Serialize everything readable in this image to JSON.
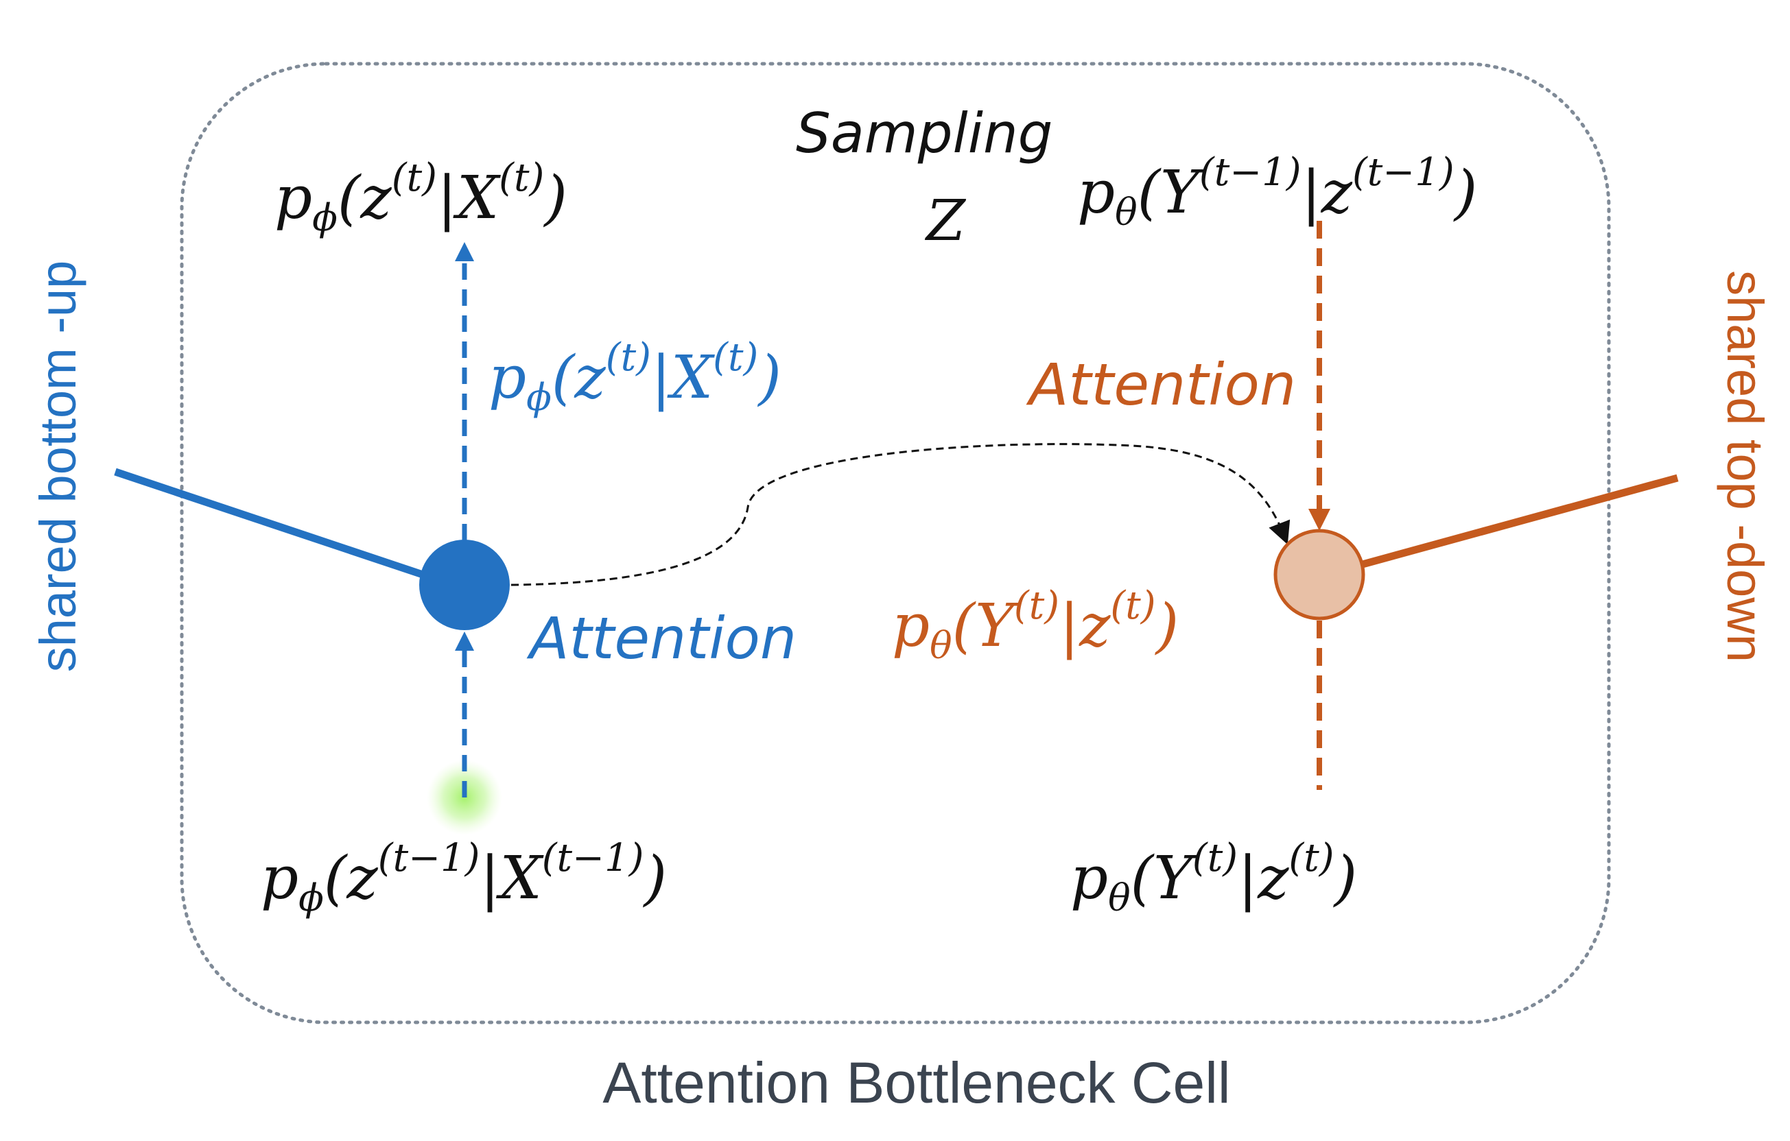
{
  "colors": {
    "bottom_up": "#2472C2",
    "top_down": "#C55A1E",
    "text": "#111111",
    "cell_border": "#7F8A97",
    "caption": "#3B4450",
    "top_down_node_fill": "#E8C0A6",
    "glow": "#9CF05A"
  },
  "cell": {
    "caption": "Attention Bottleneck Cell"
  },
  "sides": {
    "left_label": "shared bottom -up",
    "right_label": "shared top -down"
  },
  "sampling": {
    "title": "Sampling",
    "symbol": "Z"
  },
  "bottom_up": {
    "top_formula": {
      "p": "p",
      "sub": "ϕ",
      "a": "(z",
      "sup1": "(t)",
      "b": "|X",
      "sup2": "(t)",
      "c": ")"
    },
    "mid_formula": {
      "p": "p",
      "sub": "ϕ",
      "a": "(z",
      "sup1": "(t)",
      "b": "|X",
      "sup2": "(t)",
      "c": ")"
    },
    "bottom_formula": {
      "p": "p",
      "sub": "ϕ",
      "a": "(z",
      "sup1": "(t−1)",
      "b": "|X",
      "sup2": "(t−1)",
      "c": ")"
    },
    "attention_label": "Attention"
  },
  "top_down": {
    "top_formula": {
      "p": "p",
      "sub": "θ",
      "a": "(Y",
      "sup1": "(t−1)",
      "b": "|z",
      "sup2": "(t−1)",
      "c": ")"
    },
    "mid_formula": {
      "p": "p",
      "sub": "θ",
      "a": "(Y",
      "sup1": "(t)",
      "b": "|z",
      "sup2": "(t)",
      "c": ")"
    },
    "bottom_formula": {
      "p": "p",
      "sub": "θ",
      "a": "(Y",
      "sup1": "(t)",
      "b": "|z",
      "sup2": "(t)",
      "c": ")"
    },
    "attention_label": "Attention"
  }
}
